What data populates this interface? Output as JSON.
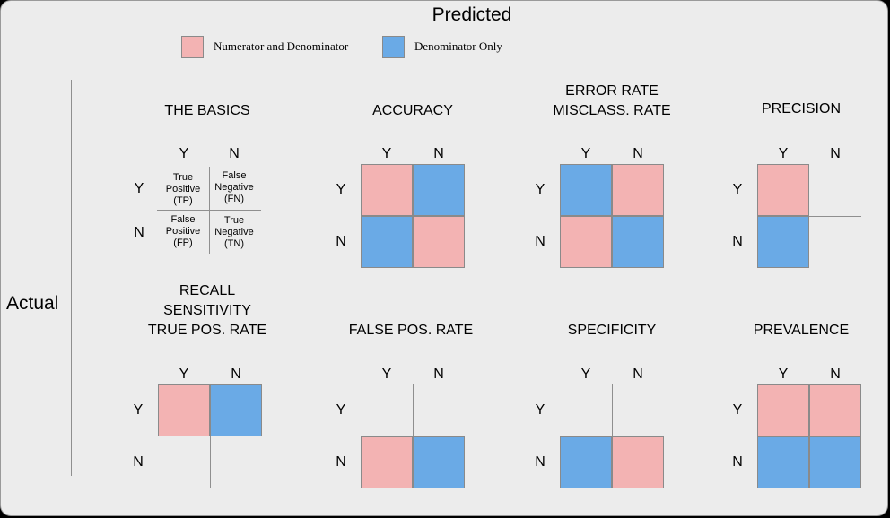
{
  "header": {
    "predicted_label": "Predicted"
  },
  "side": {
    "actual_label": "Actual"
  },
  "legend": {
    "items": [
      {
        "label": "Numerator and Denominator",
        "color": "#f3b3b3"
      },
      {
        "label": "Denominator Only",
        "color": "#6aaae6"
      }
    ]
  },
  "axis": {
    "y": "Y",
    "n": "N"
  },
  "basics": {
    "title": "THE BASICS",
    "tp": [
      "True",
      "Positive",
      "(TP)"
    ],
    "fn": [
      "False",
      "Negative",
      "(FN)"
    ],
    "fp": [
      "False",
      "Positive",
      "(FP)"
    ],
    "tn": [
      "True",
      "Negative",
      "(TN)"
    ]
  },
  "panels": [
    {
      "id": "accuracy",
      "title_lines": [
        "ACCURACY"
      ],
      "cells": {
        "tp": "num",
        "fn": "den",
        "fp": "den",
        "tn": "num"
      }
    },
    {
      "id": "error-rate",
      "title_lines": [
        "ERROR RATE",
        "MISCLASS. RATE"
      ],
      "cells": {
        "tp": "den",
        "fn": "num",
        "fp": "num",
        "tn": "den"
      }
    },
    {
      "id": "precision",
      "title_lines": [
        "PRECISION"
      ],
      "cells": {
        "tp": "num",
        "fn": "none",
        "fp": "den",
        "tn": "none"
      }
    },
    {
      "id": "recall",
      "title_lines": [
        "RECALL",
        "SENSITIVITY",
        "TRUE POS. RATE"
      ],
      "cells": {
        "tp": "num",
        "fn": "den",
        "fp": "none",
        "tn": "none"
      }
    },
    {
      "id": "false-pos-rate",
      "title_lines": [
        "FALSE POS. RATE"
      ],
      "cells": {
        "tp": "none",
        "fn": "none",
        "fp": "num",
        "tn": "den"
      }
    },
    {
      "id": "specificity",
      "title_lines": [
        "SPECIFICITY"
      ],
      "cells": {
        "tp": "none",
        "fn": "none",
        "fp": "den",
        "tn": "num"
      }
    },
    {
      "id": "prevalence",
      "title_lines": [
        "PREVALENCE"
      ],
      "cells": {
        "tp": "num",
        "fn": "num",
        "fp": "den",
        "tn": "den"
      }
    }
  ],
  "colors": {
    "numerator": "#f3b3b3",
    "denominator": "#6aaae6",
    "background": "#ececec"
  }
}
